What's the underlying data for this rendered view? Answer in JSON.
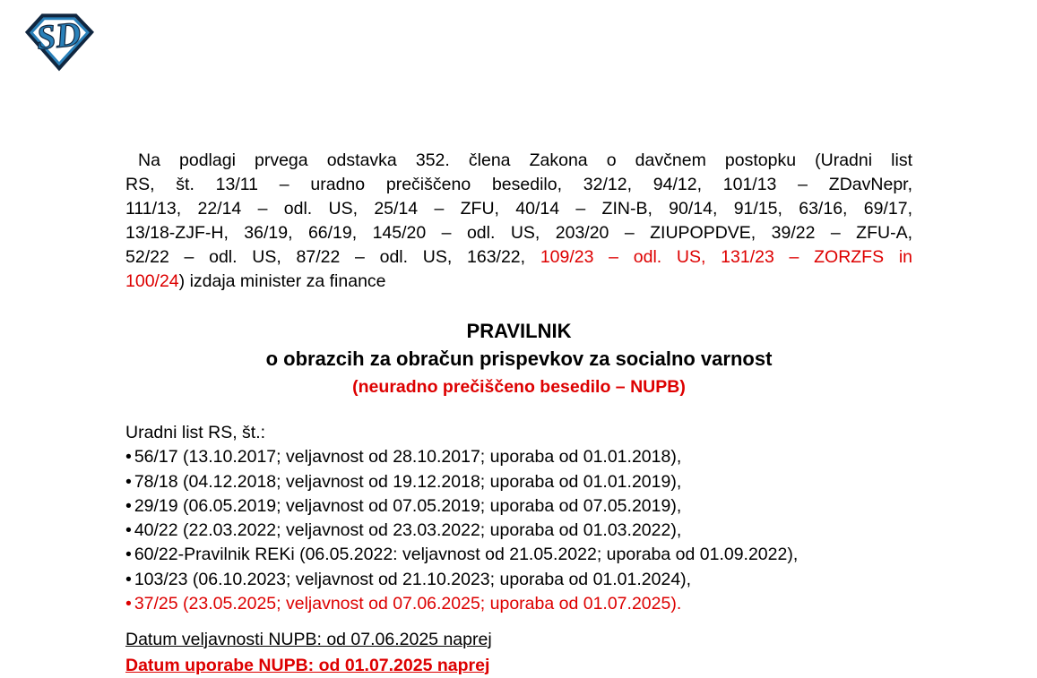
{
  "colors": {
    "red": "#DD0000",
    "logo_blue": "#2980B9",
    "logo_outline": "#10263F"
  },
  "logo": {
    "letters": "SD",
    "description": "blue diamond shield emblem with SD monogram"
  },
  "intro": {
    "lines": [
      [
        {
          "t": "Na podlagi prvega odstavka 352. člena Zakona o davčnem postopku (Uradni list"
        }
      ],
      [
        {
          "t": "RS, št. 13/11 – uradno prečiščeno besedilo, 32/12, 94/12, 101/13 – ZDavNepr,"
        }
      ],
      [
        {
          "t": "111/13, 22/14 – odl. US, 25/14 – ZFU, 40/14 – ZIN-B, 90/14, 91/15, 63/16, 69/17,"
        }
      ],
      [
        {
          "t": "13/18-ZJF-H, 36/19, 66/19, 145/20 – odl. US, 203/20 – ZIUPOPDVE, 39/22 – ZFU-A,"
        }
      ],
      [
        {
          "t": "52/22 – odl. US, 87/22 – odl. US, 163/22, "
        },
        {
          "t": "109/23 – odl. US, 131/23 – ZORZFS in",
          "red": true
        }
      ],
      [
        {
          "t": "100/24",
          "red": true
        },
        {
          "t": ") izdaja minister za finance"
        }
      ]
    ]
  },
  "title": {
    "main": "PRAVILNIK",
    "sub": "o obrazcih za obračun prispevkov za socialno varnost",
    "note": "(neuradno prečiščeno besedilo – NUPB)"
  },
  "gazette": {
    "heading": "Uradni list RS, št.:",
    "items": [
      {
        "text": "56/17 (13.10.2017; veljavnost od 28.10.2017; uporaba od 01.01.2018),"
      },
      {
        "text": "78/18 (04.12.2018; veljavnost od 19.12.2018; uporaba od 01.01.2019),"
      },
      {
        "text": "29/19 (06.05.2019; veljavnost od 07.05.2019; uporaba od 07.05.2019),"
      },
      {
        "text": "40/22 (22.03.2022; veljavnost od 23.03.2022; uporaba od 01.03.2022),"
      },
      {
        "text": "60/22-Pravilnik REKi (06.05.2022: veljavnost od 21.05.2022; uporaba od 01.09.2022),"
      },
      {
        "text": "103/23 (06.10.2023; veljavnost od 21.10.2023; uporaba od 01.01.2024),"
      },
      {
        "text": "37/25 (23.05.2025; veljavnost od 07.06.2025; uporaba od 01.07.2025).",
        "red": true
      }
    ]
  },
  "footer": {
    "validity": "Datum veljavnosti NUPB: od 07.06.2025 naprej",
    "application": "Datum uporabe NUPB: od 01.07.2025 naprej"
  }
}
